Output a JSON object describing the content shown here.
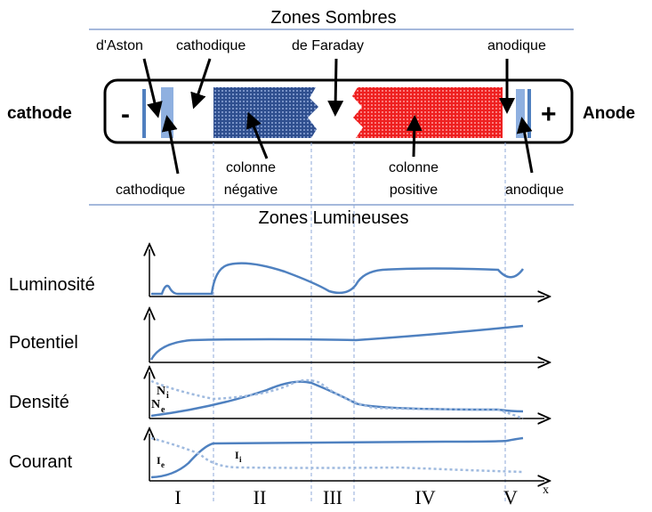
{
  "dark_zones": {
    "title": "Zones Sombres",
    "labels": [
      "d'Aston",
      "cathodique",
      "de Faraday",
      "anodique"
    ]
  },
  "tube": {
    "left": "cathode",
    "minus": "-",
    "plus": "+",
    "right": "Anode"
  },
  "bright_zones": {
    "title": "Zones Lumineuses",
    "labels": [
      [
        "cathodique"
      ],
      [
        "colonne",
        "négative"
      ],
      [
        "colonne",
        "positive"
      ],
      [
        "anodique"
      ]
    ]
  },
  "plots": [
    {
      "label": "Luminosité"
    },
    {
      "label": "Potentiel"
    },
    {
      "label": "Densité",
      "curves": [
        {
          "main": "N",
          "sub": "i"
        },
        {
          "main": "N",
          "sub": "e"
        }
      ]
    },
    {
      "label": "Courant",
      "curves": [
        {
          "main": "I",
          "sub": "e"
        },
        {
          "main": "I",
          "sub": "i"
        }
      ]
    }
  ],
  "regions": [
    "I",
    "II",
    "III",
    "IV",
    "V"
  ],
  "axis_label": "x"
}
